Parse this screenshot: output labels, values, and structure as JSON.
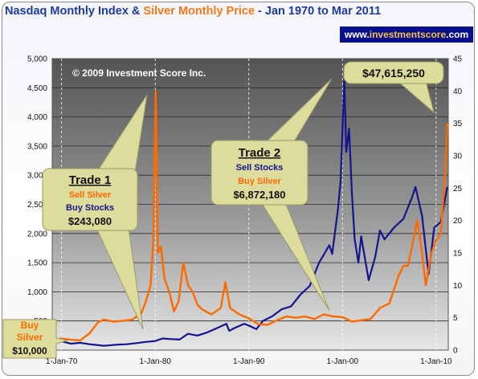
{
  "header": {
    "title_part1": "Nasdaq Monthly Index",
    "title_amp": " & ",
    "title_part2": "Silver Monthly Price",
    "title_part3": " - Jan 1970 to Mar 2011",
    "site_prefix": "www.",
    "site_highlight": "investmentscore",
    "site_suffix": ".com"
  },
  "copyright": "© 2009 Investment Score Inc.",
  "callouts": {
    "buy_silver": {
      "line1": "Buy",
      "line2": "Silver",
      "amount": "$10,000"
    },
    "trade1": {
      "title": "Trade 1",
      "line1": "Sell Silver",
      "line2": "Buy Stocks",
      "amount": "$243,080"
    },
    "trade2": {
      "title": "Trade 2",
      "line1": "Sell Stocks",
      "line2": "Buy Silver",
      "amount": "$6,872,180"
    },
    "final": {
      "amount": "$47,615,250"
    }
  },
  "colors": {
    "nasdaq": "#14148c",
    "silver": "#ff6a00",
    "callout_fill": "#dedc9c",
    "callout_border": "#9a9a6a",
    "title_blue": "#1f3a99",
    "title_orange": "#f07a1a",
    "site_bg": "#0a0f8c"
  },
  "chart_data": {
    "type": "line",
    "title": "Nasdaq Monthly Index & Silver Monthly Price - Jan 1970 to Mar 2011",
    "x_ticks": [
      "1-Jan-70",
      "1-Jan-80",
      "1-Jan-90",
      "1-Jan-00",
      "1-Jan-10"
    ],
    "y_left_ticks": [
      "-",
      "500",
      "1,000",
      "1,500",
      "2,000",
      "2,500",
      "3,000",
      "3,500",
      "4,000",
      "4,500",
      "5,000"
    ],
    "y_right_ticks": [
      "0",
      "5",
      "10",
      "15",
      "20",
      "25",
      "30",
      "35",
      "40",
      "45"
    ],
    "ylim_left": [
      0,
      5000
    ],
    "ylim_right": [
      0,
      45
    ],
    "xlim": [
      1969,
      2011.3
    ],
    "grid": true,
    "series": [
      {
        "name": "Nasdaq Monthly Index",
        "axis": "left",
        "x": [
          1969.8,
          1971,
          1972,
          1973,
          1974.5,
          1975,
          1976,
          1977,
          1978,
          1979,
          1980,
          1980.8,
          1981.5,
          1982.6,
          1983.5,
          1984.5,
          1985.5,
          1986.5,
          1987.6,
          1987.9,
          1988.5,
          1989.5,
          1990,
          1990.8,
          1991.5,
          1992.5,
          1993.5,
          1994.5,
          1995.5,
          1996.5,
          1997.5,
          1998.6,
          1998.9,
          1999.5,
          1999.8,
          2000.2,
          2000.4,
          2000.7,
          2001,
          2001.3,
          2001.7,
          2002,
          2002.8,
          2003.5,
          2004,
          2004.5,
          2005.5,
          2006.5,
          2007.5,
          2007.8,
          2008.5,
          2009.2,
          2009.8,
          2010.5,
          2011.2
        ],
        "values": [
          160,
          110,
          125,
          100,
          75,
          80,
          95,
          100,
          120,
          140,
          155,
          200,
          190,
          180,
          280,
          250,
          300,
          370,
          450,
          330,
          380,
          450,
          420,
          360,
          500,
          580,
          700,
          750,
          950,
          1100,
          1500,
          1800,
          1650,
          2400,
          2900,
          4650,
          3400,
          3800,
          2700,
          1900,
          1500,
          1950,
          1200,
          1600,
          2050,
          1900,
          2100,
          2250,
          2650,
          2800,
          2300,
          1300,
          2100,
          2200,
          2800
        ]
      },
      {
        "name": "Silver Monthly Price",
        "axis": "right",
        "x": [
          1969.8,
          1971,
          1972,
          1973,
          1973.9,
          1974.5,
          1975.5,
          1976.5,
          1977.5,
          1978.5,
          1979,
          1979.5,
          1979.8,
          1980.05,
          1980.3,
          1980.6,
          1981,
          1981.5,
          1982,
          1982.5,
          1983,
          1983.5,
          1984,
          1984.5,
          1985,
          1986,
          1987,
          1987.5,
          1988,
          1989,
          1990,
          1991,
          1992,
          1993,
          1994,
          1995,
          1996,
          1997,
          1998,
          1999,
          2000,
          2001,
          2002,
          2003,
          2004,
          2005,
          2006,
          2006.5,
          2007,
          2008,
          2008.5,
          2008.9,
          2009.5,
          2010,
          2010.5,
          2010.8,
          2011.0,
          2011.2
        ],
        "values": [
          1.8,
          1.6,
          1.5,
          2.6,
          4.3,
          4.7,
          4.4,
          4.5,
          4.7,
          5.6,
          7.5,
          10,
          17,
          40,
          15,
          16,
          11,
          9,
          6,
          7.5,
          13.5,
          10,
          9,
          7,
          6.3,
          5.5,
          6.5,
          10.5,
          6.5,
          5.5,
          4.9,
          4.0,
          3.9,
          4.6,
          5.2,
          5.0,
          5.2,
          4.8,
          5.5,
          5.2,
          5.1,
          4.4,
          4.6,
          4.8,
          6.5,
          7.2,
          11.5,
          13,
          13,
          20,
          15,
          10,
          15,
          17,
          18,
          24,
          28,
          35
        ]
      }
    ]
  }
}
